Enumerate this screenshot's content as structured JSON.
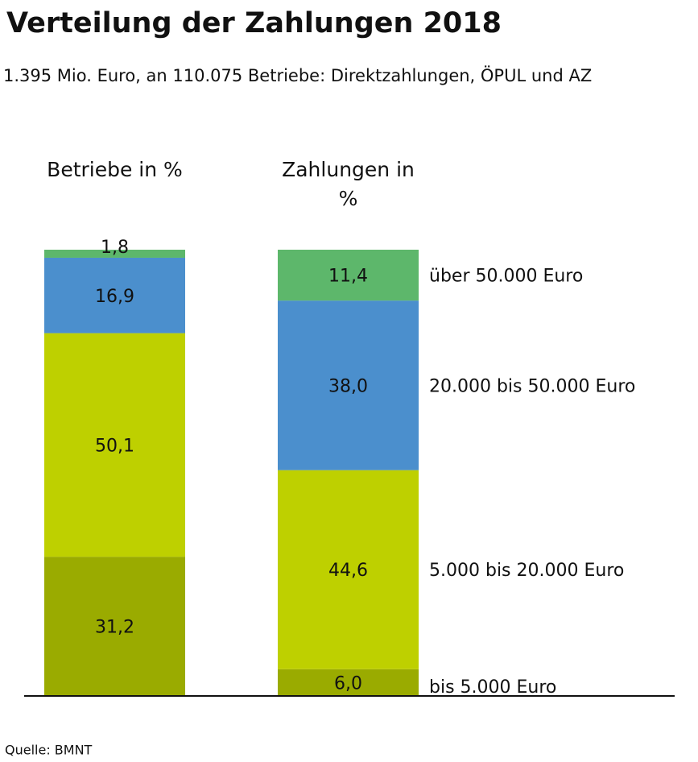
{
  "chart_data": {
    "type": "stacked-bar",
    "title": "Verteilung der Zahlungen 2018",
    "subtitle": "1.395 Mio. Euro, an 110.075 Betriebe: Direktzahlungen, ÖPUL und AZ",
    "categories": [
      "Betriebe in %",
      "Zahlungen in %"
    ],
    "ylim": [
      0,
      100
    ],
    "series": [
      {
        "name": "bis 5.000 Euro",
        "color": "#9aab00",
        "values": [
          31.2,
          6.0
        ],
        "value_labels": [
          "31,2",
          "6,0"
        ]
      },
      {
        "name": "5.000 bis 20.000 Euro",
        "color": "#bed000",
        "values": [
          50.1,
          44.6
        ],
        "value_labels": [
          "50,1",
          "44,6"
        ]
      },
      {
        "name": "20.000 bis 50.000 Euro",
        "color": "#4b8fcd",
        "values": [
          16.9,
          38.0
        ],
        "value_labels": [
          "16,9",
          "38,0"
        ]
      },
      {
        "name": "über 50.000 Euro",
        "color": "#5db76b",
        "values": [
          1.8,
          11.4
        ],
        "value_labels": [
          "1,8",
          "11,4"
        ]
      }
    ],
    "source": "Quelle: BMNT"
  }
}
